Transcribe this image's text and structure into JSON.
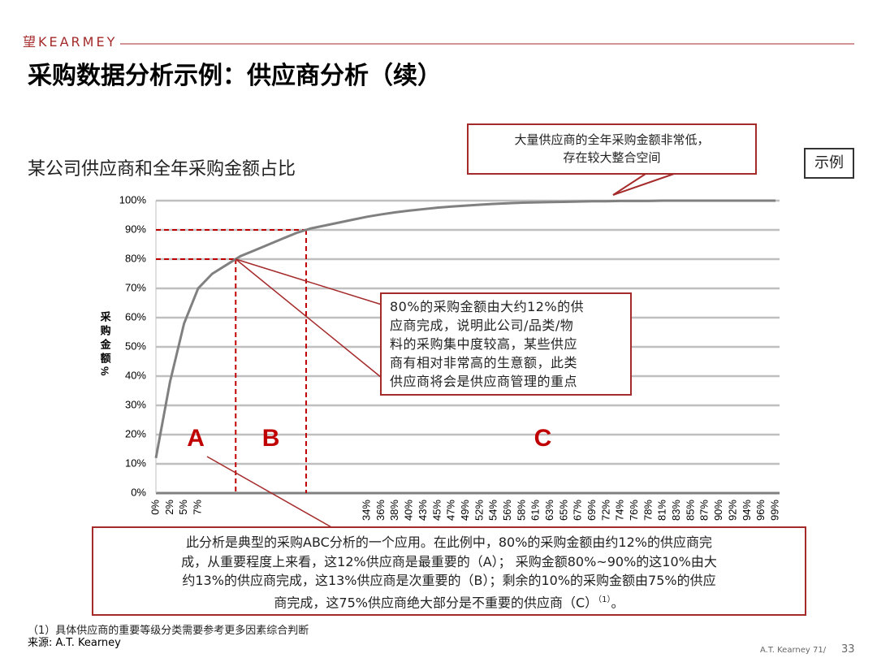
{
  "header": {
    "logo": "望KEARMEY",
    "title": "采购数据分析示例：供应商分析（续）",
    "subtitle": "某公司供应商和全年采购金额占比",
    "tag": "示例"
  },
  "chart_data": {
    "type": "line",
    "categories": [
      "0%",
      "2%",
      "5%",
      "7%",
      null,
      null,
      null,
      null,
      null,
      null,
      null,
      null,
      null,
      null,
      null,
      "34%",
      "36%",
      "38%",
      "40%",
      "43%",
      "45%",
      "47%",
      "49%",
      "52%",
      "54%",
      "56%",
      "58%",
      "61%",
      "63%",
      "65%",
      "67%",
      "69%",
      "72%",
      "74%",
      "76%",
      "78%",
      "81%",
      "83%",
      "85%",
      "87%",
      "90%",
      "92%",
      "94%",
      "96%",
      "99%"
    ],
    "values": [
      12,
      38,
      58,
      70,
      75,
      78,
      81,
      83,
      85,
      87,
      89,
      90.5,
      91.5,
      92.5,
      93.5,
      94.5,
      95.3,
      96,
      96.6,
      97.1,
      97.6,
      98,
      98.3,
      98.6,
      98.9,
      99.1,
      99.3,
      99.4,
      99.5,
      99.6,
      99.7,
      99.8,
      99.8,
      99.9,
      99.9,
      99.9,
      100,
      100,
      100,
      100,
      100,
      100,
      100,
      100,
      100
    ],
    "color": "#808080",
    "ylabel": "采购金额%",
    "ylim": [
      0,
      100
    ],
    "yticks": [
      {
        "value": 0,
        "label": "0%"
      },
      {
        "value": 10,
        "label": "10%"
      },
      {
        "value": 20,
        "label": "20%"
      },
      {
        "value": 30,
        "label": "30%"
      },
      {
        "value": 40,
        "label": "40%"
      },
      {
        "value": 50,
        "label": "50%"
      },
      {
        "value": 60,
        "label": "60%"
      },
      {
        "value": 70,
        "label": "70%"
      },
      {
        "value": 80,
        "label": "80%"
      },
      {
        "value": 90,
        "label": "90%"
      },
      {
        "value": 100,
        "label": "100%"
      }
    ],
    "grid": true,
    "reference_values": [
      80,
      90
    ],
    "reference_color": "#c00000",
    "segments": [
      "A",
      "B",
      "C"
    ]
  },
  "callouts": {
    "top": [
      "大量供应商的全年采购金额非常低，",
      "存在较大整合空间"
    ],
    "middle": [
      "80%的采购金额由大约12%的供",
      "应商完成，说明此公司/品类/物",
      "料的采购集中度较高，某些供应",
      "商有相对非常高的生意额，此类",
      "供应商将会是供应商管理的重点"
    ],
    "bottom": [
      "此分析是典型的采购ABC分析的一个应用。在此例中，80%的采购金额由约12%的供应商完",
      "成，从重要程度上来看，这12%供应商是最重要的（A）； 采购金额80%~90%的这10%由大",
      "约13%的供应商完成，这13%供应商是次重要的（B）；剩余的10%的采购金额由75%的供应"
    ],
    "bottom_last": [
      "商完成，这75%供应商绝大部分是不重要的供应商（C）",
      "（1）",
      "。"
    ]
  },
  "footnote": "（1）具体供应商的重要等级分类需要参考更多因素综合判断",
  "source": "来源: A.T. Kearney",
  "footer": {
    "brand": "A.T. Kearney 71/",
    "page": "33"
  }
}
